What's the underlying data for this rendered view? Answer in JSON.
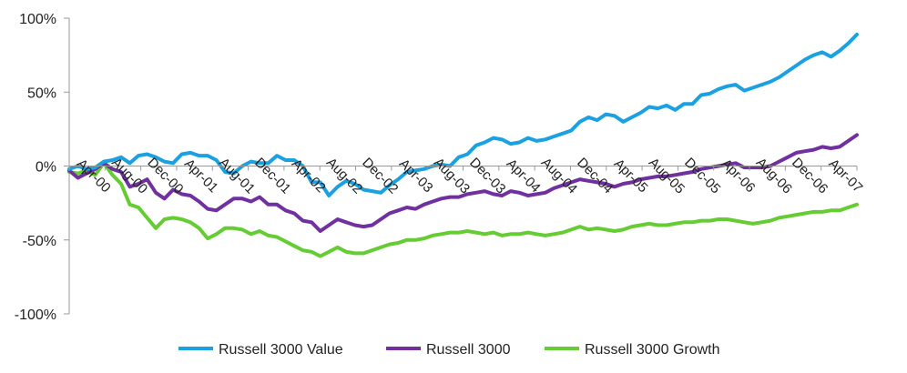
{
  "chart_data": {
    "type": "line",
    "title": "",
    "xlabel": "",
    "ylabel": "",
    "ylim": [
      -100,
      100
    ],
    "yticks": [
      100,
      50,
      0,
      -50,
      -100
    ],
    "ytick_labels": [
      "100%",
      "50%",
      "0%",
      "-50%",
      "-100%"
    ],
    "grid": false,
    "legend_position": "bottom",
    "x_tick_labels": [
      "Apr-00",
      "Aug-00",
      "Dec-00",
      "Apr-01",
      "Aug-01",
      "Dec-01",
      "Apr-02",
      "Aug-02",
      "Dec-02",
      "Apr-03",
      "Aug-03",
      "Dec-03",
      "Apr-04",
      "Aug-04",
      "Dec-04",
      "Apr-05",
      "Aug-05",
      "Dec-05",
      "Apr-06",
      "Aug-06",
      "Dec-06",
      "Apr-07"
    ],
    "series": [
      {
        "name": "Russell 3000 Value",
        "color": "#1ba1e2",
        "values": [
          -2,
          0,
          -2,
          -1,
          3,
          4,
          6,
          2,
          7,
          8,
          6,
          3,
          2,
          8,
          9,
          7,
          7,
          4,
          -4,
          -5,
          0,
          3,
          2,
          2,
          7,
          4,
          4,
          0,
          -11,
          -11,
          -20,
          -14,
          -10,
          -12,
          -16,
          -17,
          -18,
          -13,
          -9,
          -4,
          -3,
          -2,
          0,
          1,
          0,
          6,
          8,
          14,
          16,
          19,
          18,
          15,
          16,
          19,
          17,
          18,
          20,
          22,
          24,
          30,
          33,
          31,
          35,
          34,
          30,
          33,
          36,
          40,
          39,
          41,
          38,
          42,
          42,
          48,
          49,
          52,
          54,
          55,
          51,
          53,
          55,
          57,
          60,
          64,
          68,
          72,
          75,
          77,
          74,
          78,
          83,
          89
        ]
      },
      {
        "name": "Russell 3000",
        "color": "#7030a0",
        "values": [
          -3,
          -8,
          -5,
          -2,
          2,
          -2,
          -4,
          -14,
          -12,
          -9,
          -18,
          -22,
          -16,
          -19,
          -20,
          -24,
          -29,
          -30,
          -26,
          -22,
          -22,
          -24,
          -21,
          -26,
          -26,
          -30,
          -32,
          -37,
          -38,
          -44,
          -40,
          -36,
          -38,
          -40,
          -41,
          -40,
          -36,
          -32,
          -30,
          -28,
          -29,
          -26,
          -24,
          -22,
          -21,
          -21,
          -19,
          -18,
          -17,
          -19,
          -20,
          -17,
          -18,
          -20,
          -19,
          -18,
          -15,
          -13,
          -11,
          -9,
          -10,
          -11,
          -12,
          -14,
          -12,
          -11,
          -9,
          -8,
          -7,
          -7,
          -6,
          -5,
          -4,
          -2,
          -1,
          0,
          1,
          2,
          -1,
          -1,
          -1,
          0,
          3,
          6,
          9,
          10,
          11,
          13,
          12,
          13,
          17,
          21
        ]
      },
      {
        "name": "Russell 3000 Growth",
        "color": "#66cc33",
        "values": [
          -4,
          -5,
          -3,
          -6,
          2,
          -6,
          -12,
          -26,
          -28,
          -35,
          -42,
          -36,
          -35,
          -36,
          -38,
          -42,
          -49,
          -46,
          -42,
          -42,
          -43,
          -46,
          -44,
          -47,
          -48,
          -51,
          -54,
          -57,
          -58,
          -61,
          -58,
          -55,
          -58,
          -59,
          -59,
          -57,
          -55,
          -53,
          -52,
          -50,
          -50,
          -49,
          -47,
          -46,
          -45,
          -45,
          -44,
          -45,
          -46,
          -45,
          -47,
          -46,
          -46,
          -45,
          -46,
          -47,
          -46,
          -45,
          -43,
          -41,
          -43,
          -42,
          -43,
          -44,
          -43,
          -41,
          -40,
          -39,
          -40,
          -40,
          -39,
          -38,
          -38,
          -37,
          -37,
          -36,
          -36,
          -37,
          -38,
          -39,
          -38,
          -37,
          -35,
          -34,
          -33,
          -32,
          -31,
          -31,
          -30,
          -30,
          -28,
          -26
        ]
      }
    ]
  }
}
